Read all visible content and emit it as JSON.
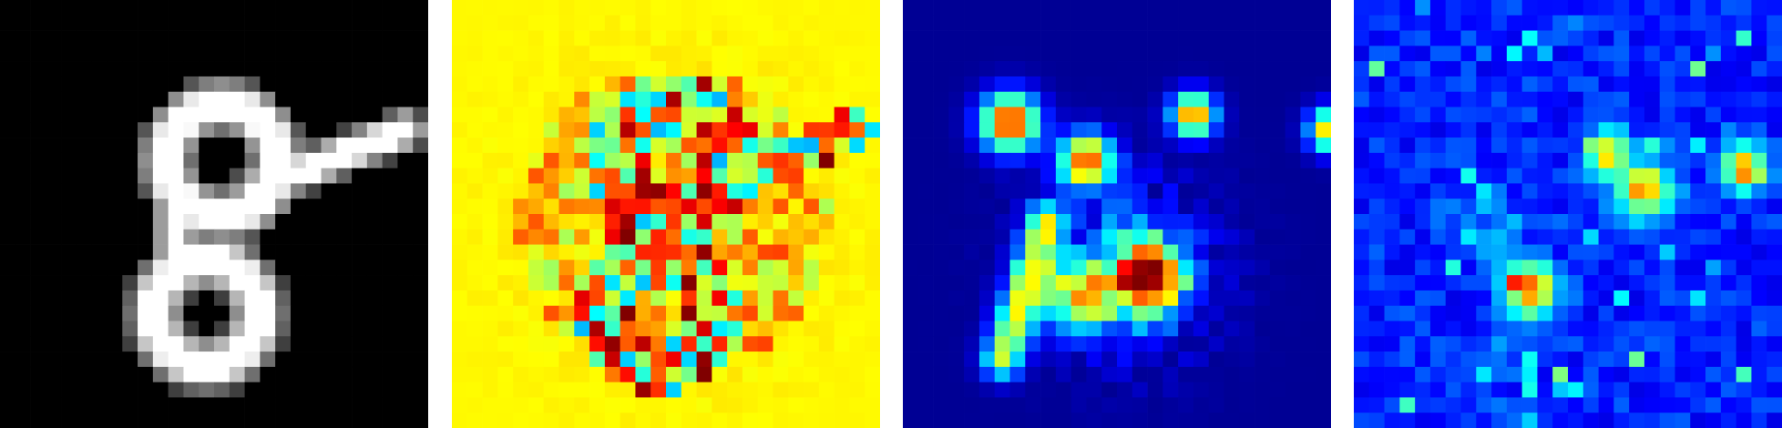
{
  "panels": [
    {
      "id": "input",
      "colormap": "gray",
      "background": "#000000"
    },
    {
      "id": "map-1",
      "colormap": "jet",
      "background": "#d4f51e"
    },
    {
      "id": "map-2",
      "colormap": "jet",
      "background": "#00007f"
    },
    {
      "id": "map-3",
      "colormap": "jet",
      "background": "#0a0ab4"
    }
  ],
  "colors": {
    "gray_bg": "#000000",
    "gray_fg": "#ffffff",
    "jet_low": "#00007f",
    "jet_mid": "#7cff7a",
    "jet_high": "#7f0000",
    "page_bg": "#ffffff"
  }
}
